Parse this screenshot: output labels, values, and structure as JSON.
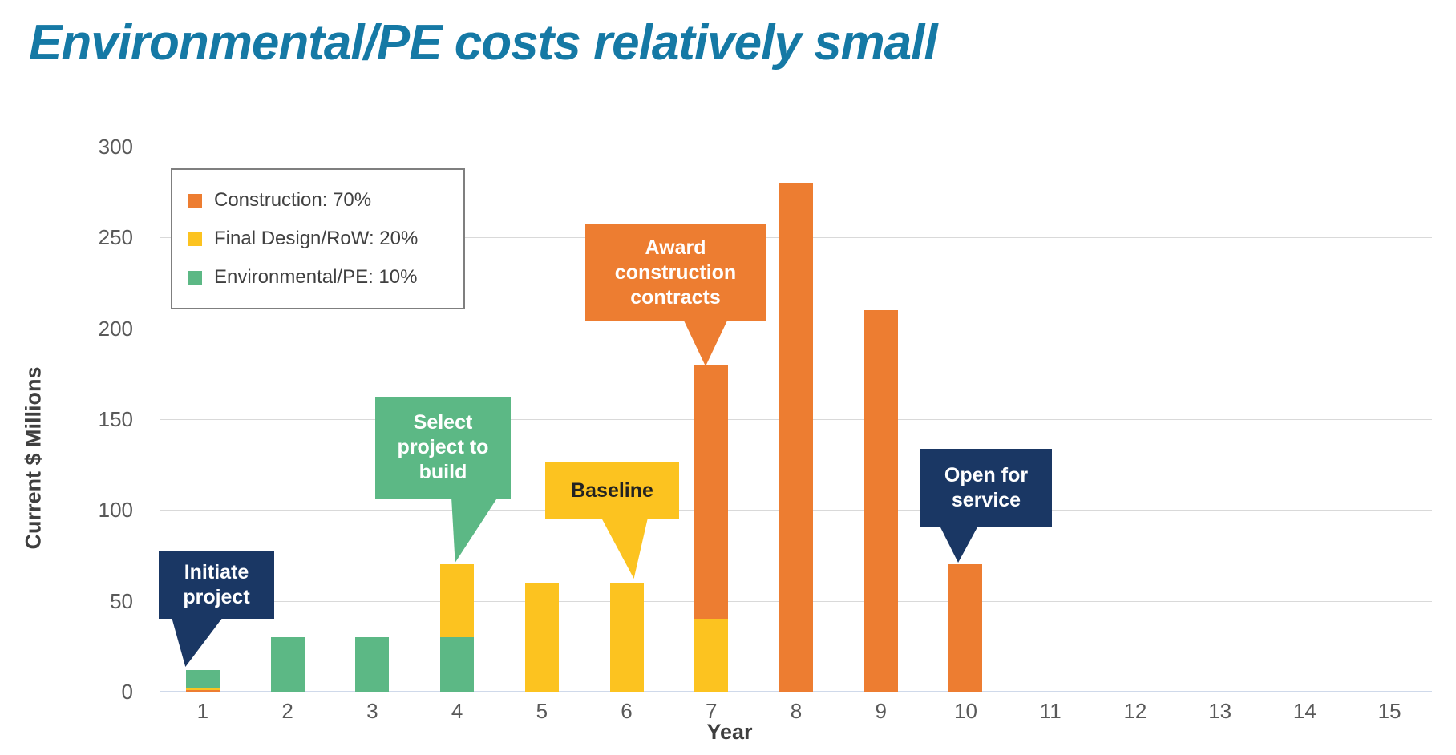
{
  "page": {
    "title": "Environmental/PE costs relatively small"
  },
  "colors": {
    "title": "#1579A5",
    "construction": "#ED7D31",
    "final_design": "#FCC320",
    "environmental": "#5CB885",
    "navy": "#1A3764",
    "axis_text": "#595959",
    "gridline": "#D9D9D9",
    "baseline_axis": "#CFD9EA"
  },
  "axis": {
    "x_title": "Year",
    "y_title": "Current $ Millions"
  },
  "legend": {
    "items": [
      {
        "label": "Construction: 70%",
        "series": "construction",
        "color": "#ED7D31"
      },
      {
        "label": "Final Design/RoW: 20%",
        "series": "final_design",
        "color": "#FCC320"
      },
      {
        "label": "Environmental/PE: 10%",
        "series": "environmental",
        "color": "#5CB885"
      }
    ]
  },
  "chart_data": {
    "type": "bar",
    "stacked": true,
    "title": "Environmental/PE costs relatively small",
    "xlabel": "Year",
    "ylabel": "Current $ Millions",
    "ylim": [
      0,
      300
    ],
    "yticks": [
      0,
      50,
      100,
      150,
      200,
      250,
      300
    ],
    "grid": "horizontal",
    "legend_position": "upper-left-inside",
    "categories": [
      "1",
      "2",
      "3",
      "4",
      "5",
      "6",
      "7",
      "8",
      "9",
      "10",
      "11",
      "12",
      "13",
      "14",
      "15"
    ],
    "series": [
      {
        "name": "Construction: 70%",
        "key": "construction",
        "color": "#ED7D31",
        "values": [
          1,
          0,
          0,
          0,
          0,
          0,
          140,
          280,
          210,
          70,
          0,
          0,
          0,
          0,
          0
        ]
      },
      {
        "name": "Final Design/RoW: 20%",
        "key": "final_design",
        "color": "#FCC320",
        "values": [
          1,
          0,
          0,
          40,
          60,
          60,
          40,
          0,
          0,
          0,
          0,
          0,
          0,
          0,
          0
        ]
      },
      {
        "name": "Environmental/PE: 10%",
        "key": "environmental",
        "color": "#5CB885",
        "values": [
          10,
          30,
          30,
          30,
          0,
          0,
          0,
          0,
          0,
          0,
          0,
          0,
          0,
          0,
          0
        ]
      }
    ],
    "bar_stacks": [
      {
        "x": "1",
        "segments": [
          [
            "construction",
            1
          ],
          [
            "final_design",
            1
          ],
          [
            "environmental",
            10
          ]
        ]
      },
      {
        "x": "2",
        "segments": [
          [
            "environmental",
            30
          ]
        ]
      },
      {
        "x": "3",
        "segments": [
          [
            "environmental",
            30
          ]
        ]
      },
      {
        "x": "4",
        "segments": [
          [
            "environmental",
            30
          ],
          [
            "final_design",
            40
          ]
        ]
      },
      {
        "x": "5",
        "segments": [
          [
            "final_design",
            60
          ]
        ]
      },
      {
        "x": "6",
        "segments": [
          [
            "final_design",
            60
          ]
        ]
      },
      {
        "x": "7",
        "segments": [
          [
            "final_design",
            40
          ],
          [
            "construction",
            140
          ]
        ]
      },
      {
        "x": "8",
        "segments": [
          [
            "construction",
            280
          ]
        ]
      },
      {
        "x": "9",
        "segments": [
          [
            "construction",
            210
          ]
        ]
      },
      {
        "x": "10",
        "segments": [
          [
            "construction",
            70
          ]
        ]
      },
      {
        "x": "11",
        "segments": []
      },
      {
        "x": "12",
        "segments": []
      },
      {
        "x": "13",
        "segments": []
      },
      {
        "x": "14",
        "segments": []
      },
      {
        "x": "15",
        "segments": []
      }
    ],
    "annotations": [
      "Initiate project",
      "Select project to build",
      "Baseline",
      "Award construction contracts",
      "Open for service"
    ]
  },
  "callouts": {
    "initiate": {
      "text": "Initiate project",
      "fill": "#1A3764",
      "text_color": "#FFFFFF",
      "points_to_year": "1"
    },
    "select": {
      "text": "Select project to build",
      "fill": "#5CB885",
      "text_color": "#FFFFFF",
      "points_to_year": "4"
    },
    "baseline": {
      "text": "Baseline",
      "fill": "#FCC320",
      "text_color": "#222222",
      "points_to_year": "6"
    },
    "award": {
      "text": "Award construction contracts",
      "fill": "#ED7D31",
      "text_color": "#FFFFFF",
      "points_to_year": "7"
    },
    "open": {
      "text": "Open for service",
      "fill": "#1A3764",
      "text_color": "#FFFFFF",
      "points_to_year": "10"
    }
  }
}
